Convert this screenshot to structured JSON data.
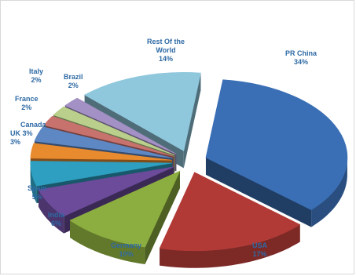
{
  "chart_data": {
    "type": "pie",
    "exploded": true,
    "three_d": true,
    "title": "",
    "label_color": "#2e6aa5",
    "slices": [
      {
        "label": "PR China",
        "percent_label": "34%",
        "value": 34,
        "color": "#3a6fb5"
      },
      {
        "label": "USA",
        "percent_label": "17%",
        "value": 17,
        "color": "#b23a36"
      },
      {
        "label": "Germany",
        "percent_label": "10%",
        "value": 10,
        "color": "#8cad3f"
      },
      {
        "label": "India",
        "percent_label": "6%",
        "value": 6,
        "color": "#6b4b9a"
      },
      {
        "label": "Spain",
        "percent_label": "5%",
        "value": 5,
        "color": "#2e9fc0"
      },
      {
        "label": "UK",
        "percent_label": "3%",
        "value": 3,
        "color": "#e88a2e"
      },
      {
        "label": "Canada",
        "percent_label": "3%",
        "value": 3,
        "color": "#5e88c4"
      },
      {
        "label": "France",
        "percent_label": "2%",
        "value": 2,
        "color": "#c8726e"
      },
      {
        "label": "Italy",
        "percent_label": "2%",
        "value": 2,
        "color": "#b9cf8b"
      },
      {
        "label": "Brazil",
        "percent_label": "2%",
        "value": 2,
        "color": "#a390c4"
      },
      {
        "label": "Rest Of the World",
        "percent_label": "14%",
        "value": 14,
        "color": "#8fc7dc"
      }
    ]
  }
}
